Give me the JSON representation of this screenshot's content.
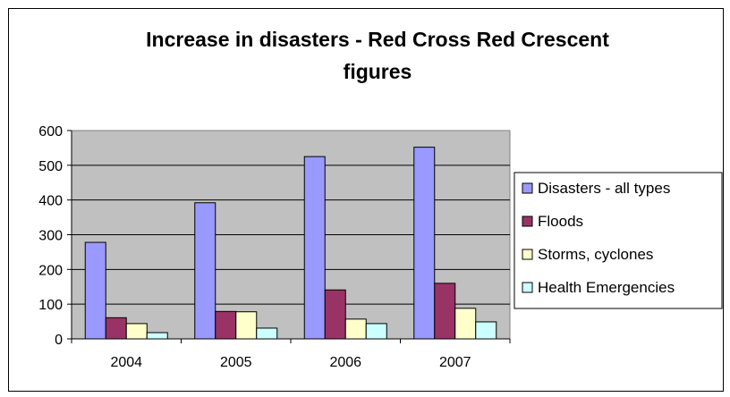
{
  "chart_data": {
    "type": "bar",
    "title_line1": "Increase in disasters - Red Cross Red Crescent",
    "title_line2": "figures",
    "xlabel": "",
    "ylabel": "",
    "categories": [
      "2004",
      "2005",
      "2006",
      "2007"
    ],
    "ylim": [
      0,
      600
    ],
    "yticks": [
      "0",
      "100",
      "200",
      "300",
      "400",
      "500",
      "600"
    ],
    "grid": true,
    "legend_position": "right",
    "series": [
      {
        "name": "Disasters - all types",
        "values": [
          278,
          392,
          525,
          552
        ],
        "color": "#9999ff"
      },
      {
        "name": "Floods",
        "values": [
          61,
          79,
          141,
          160
        ],
        "color": "#993366"
      },
      {
        "name": "Storms, cyclones",
        "values": [
          44,
          78,
          57,
          88
        ],
        "color": "#ffffcc"
      },
      {
        "name": "Health Emergencies",
        "values": [
          18,
          31,
          44,
          49
        ],
        "color": "#ccffff"
      }
    ],
    "plot_background": "#c0c0c0"
  }
}
